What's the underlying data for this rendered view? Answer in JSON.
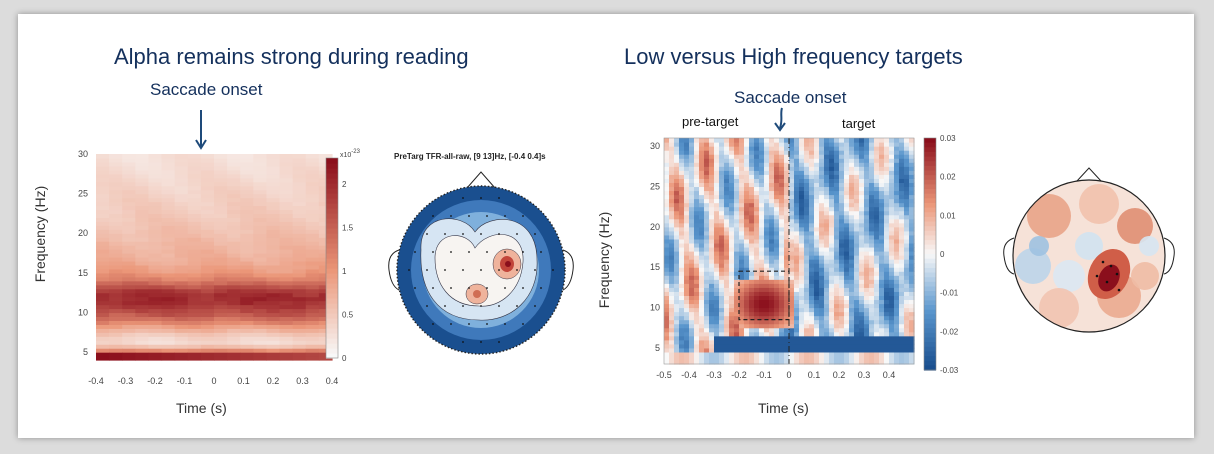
{
  "left_panel": {
    "title": "Alpha remains strong during reading",
    "annotation": "Saccade onset"
  },
  "right_panel": {
    "title": "Low versus High frequency targets",
    "annotation": "Saccade onset",
    "label_pre": "pre-target",
    "label_post": "target"
  },
  "topo_left_title": "PreTarg TFR-all-raw, [9 13]Hz, [-0.4 0.4]s",
  "colors": {
    "accent_dark_blue": "#14305c",
    "red_high": "#8b0f1c",
    "blue_low": "#1a4f8f"
  },
  "chart_data": [
    {
      "type": "heatmap",
      "title": "",
      "xlabel": "Time (s)",
      "ylabel": "Frequency (Hz)",
      "xlim": [
        -0.4,
        0.4
      ],
      "ylim": [
        4,
        30
      ],
      "x_ticks": [
        "-0.4",
        "-0.3",
        "-0.2",
        "-0.1",
        "0",
        "0.1",
        "0.2",
        "0.3",
        "0.4"
      ],
      "y_ticks": [
        "5",
        "10",
        "15",
        "20",
        "25",
        "30"
      ],
      "colorbar": {
        "exponent_label": "x10",
        "exponent": "-23",
        "ticks": [
          "0",
          "0.5",
          "1",
          "1.5",
          "2"
        ],
        "range": [
          0,
          2.3
        ]
      },
      "profile_freqs": [
        4,
        5,
        6,
        7,
        8,
        9,
        10,
        11,
        12,
        13,
        14,
        15,
        16,
        17,
        18,
        20,
        22,
        25,
        28,
        30
      ],
      "profile_values": [
        2.3,
        1.4,
        0.3,
        0.4,
        0.8,
        1.3,
        1.7,
        2.0,
        2.1,
        1.8,
        1.3,
        1.0,
        0.85,
        0.75,
        0.7,
        0.6,
        0.5,
        0.4,
        0.3,
        0.25
      ]
    },
    {
      "type": "heatmap",
      "title": "",
      "xlabel": "Time (s)",
      "ylabel": "Frequency (Hz)",
      "xlim": [
        -0.5,
        0.5
      ],
      "ylim": [
        3,
        31
      ],
      "x_ticks": [
        "-0.5",
        "-0.4",
        "-0.3",
        "-0.2",
        "-0.1",
        "0",
        "0.1",
        "0.2",
        "0.3",
        "0.4"
      ],
      "y_ticks": [
        "5",
        "10",
        "15",
        "20",
        "25",
        "30"
      ],
      "colorbar": {
        "ticks": [
          "0.03",
          "0.02",
          "0.01",
          "0",
          "-0.01",
          "-0.02",
          "-0.03"
        ],
        "range": [
          -0.03,
          0.03
        ]
      },
      "highlight_box": {
        "t": [
          -0.2,
          0.0
        ],
        "f": [
          8.5,
          14.5
        ]
      },
      "hot_spot": {
        "t": [
          -0.22,
          0.02
        ],
        "f": [
          7.5,
          13.5
        ],
        "value": 0.03
      },
      "low_band": {
        "f": [
          4.5,
          6.5
        ],
        "value": -0.028
      }
    }
  ]
}
